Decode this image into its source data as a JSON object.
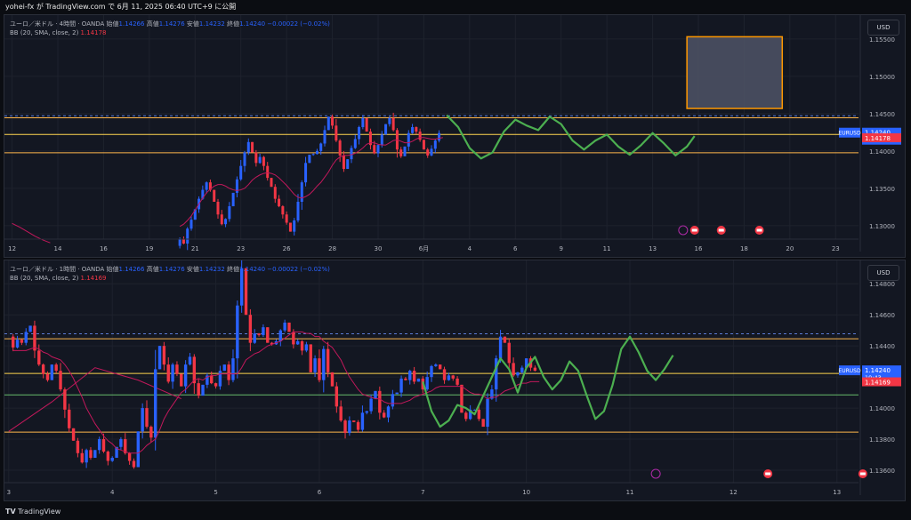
{
  "header": {
    "text": "yohei-fx が TradingView.com で 6月 11, 2025 06:40 UTC+9 に公開"
  },
  "footer": {
    "logo": "TV",
    "brand": "TradingView"
  },
  "panels": [
    {
      "legend": {
        "symbol": "ユーロ／米ドル · 4時間 · OANDA",
        "open_label": "始値",
        "open": "1.14266",
        "high_label": "高値",
        "high": "1.14276",
        "low_label": "安値",
        "low": "1.14232",
        "close_label": "終値",
        "close": "1.14240",
        "change": "−0.00022 (−0.02%)",
        "indicator": "BB (20, SMA, close, 2)",
        "indicator_value": "1.14178"
      },
      "currency_button": "USD",
      "price_badge": {
        "symbol": "EURUSD",
        "price": "1.14240",
        "countdown": "03:19:43"
      },
      "bb_badge": "1.14178"
    },
    {
      "legend": {
        "symbol": "ユーロ／米ドル · 1時間 · OANDA",
        "open_label": "始値",
        "open": "1.14266",
        "high_label": "高値",
        "high": "1.14276",
        "low_label": "安値",
        "low": "1.14232",
        "close_label": "終値",
        "close": "1.14240",
        "change": "−0.00022 (−0.02%)",
        "indicator": "BB (20, SMA, close, 2)",
        "indicator_value": "1.14169"
      },
      "currency_button": "USD",
      "price_badge": {
        "symbol": "EURUSD",
        "price": "1.14240",
        "countdown": "19:43"
      },
      "bb_badge": "1.14169"
    }
  ],
  "chart_data": [
    {
      "type": "candlestick",
      "title": "ユーロ／米ドル · 4時間 · OANDA",
      "y_ticks": [
        "1.15500",
        "1.15000",
        "1.14500",
        "1.14000",
        "1.13500",
        "1.13000"
      ],
      "y_tick_values": [
        1.155,
        1.15,
        1.145,
        1.14,
        1.135,
        1.13
      ],
      "ylim": [
        1.1282,
        1.1582
      ],
      "x_ticks": [
        "12",
        "14",
        "16",
        "19",
        "21",
        "23",
        "26",
        "28",
        "30",
        "6月",
        "4",
        "6",
        "9",
        "11",
        "13",
        "16",
        "18",
        "20",
        "23"
      ],
      "x_tick_slots": [
        0,
        12,
        24,
        36,
        48,
        60,
        72,
        84,
        96,
        108,
        120,
        132,
        144,
        156,
        168,
        180,
        192,
        204,
        216
      ],
      "x_slot_range": [
        -2,
        222
      ],
      "levels": [
        {
          "price": 1.14445,
          "color": "#ffb74d",
          "style": "solid"
        },
        {
          "price": 1.14222,
          "color": "#ffd54f",
          "style": "solid"
        },
        {
          "price": 1.13976,
          "color": "#ffb74d",
          "style": "solid"
        },
        {
          "price": 1.14472,
          "color": "#5b7bd5",
          "style": "dashed"
        }
      ],
      "zone_box": {
        "slot_start": 177,
        "slot_end": 202,
        "price_top": 1.1553,
        "price_bottom": 1.1457
      },
      "last_price": 1.1424,
      "bb_last": 1.14178,
      "ohlc_path": [
        1.1273,
        1.1282,
        1.1276,
        1.1296,
        1.1308,
        1.1322,
        1.1336,
        1.1348,
        1.1358,
        1.1348,
        1.1332,
        1.1315,
        1.1302,
        1.1309,
        1.1326,
        1.1344,
        1.1362,
        1.138,
        1.1398,
        1.1412,
        1.1398,
        1.1384,
        1.1392,
        1.138,
        1.1364,
        1.1352,
        1.1336,
        1.1326,
        1.1315,
        1.1304,
        1.1292,
        1.1307,
        1.1332,
        1.1358,
        1.1384,
        1.1395,
        1.1396,
        1.14,
        1.141,
        1.1428,
        1.1446,
        1.1434,
        1.1414,
        1.1394,
        1.1376,
        1.1389,
        1.1404,
        1.1416,
        1.1432,
        1.1444,
        1.1426,
        1.1408,
        1.1397,
        1.1408,
        1.1422,
        1.1436,
        1.1444,
        1.1428,
        1.1402,
        1.1393,
        1.1406,
        1.1424,
        1.1432,
        1.1426,
        1.1415,
        1.1402,
        1.1394,
        1.1403,
        1.1414,
        1.1424
      ],
      "path_slot_start": 43,
      "bb_path": [
        1.1299,
        1.1302,
        1.1307,
        1.1313,
        1.1321,
        1.1329,
        1.1337,
        1.1344,
        1.1349,
        1.1353,
        1.1355,
        1.1355,
        1.1353,
        1.135,
        1.1348,
        1.1347,
        1.1348,
        1.135,
        1.1355,
        1.1361,
        1.1365,
        1.1368,
        1.137,
        1.1371,
        1.137,
        1.1368,
        1.1364,
        1.1359,
        1.1354,
        1.1348,
        1.1342,
        1.1338,
        1.1337,
        1.1339,
        1.1342,
        1.1347,
        1.1353,
        1.1358,
        1.1365,
        1.1372,
        1.1381,
        1.1388,
        1.1392,
        1.1394,
        1.1394,
        1.1395,
        1.1397,
        1.14,
        1.1404,
        1.1409,
        1.1411,
        1.1411,
        1.1409,
        1.1408,
        1.1408,
        1.1411,
        1.1414,
        1.1415,
        1.1413,
        1.1411,
        1.1411,
        1.1413,
        1.1416,
        1.1418,
        1.1418,
        1.1417,
        1.1416,
        1.1416,
        1.1417,
        1.1418
      ],
      "band_path": [
        [
          0,
          1.1303
        ],
        [
          2,
          1.1298
        ],
        [
          4,
          1.1292
        ],
        [
          6,
          1.1286
        ],
        [
          8,
          1.1281
        ],
        [
          10,
          1.1277
        ]
      ],
      "green_path": [
        [
          114,
          1.1448
        ],
        [
          117,
          1.1432
        ],
        [
          120,
          1.1404
        ],
        [
          123,
          1.139
        ],
        [
          126,
          1.1398
        ],
        [
          129,
          1.1426
        ],
        [
          132,
          1.1442
        ],
        [
          135,
          1.1434
        ],
        [
          138,
          1.1428
        ],
        [
          141,
          1.1446
        ],
        [
          144,
          1.1436
        ],
        [
          147,
          1.1414
        ],
        [
          150,
          1.1402
        ],
        [
          153,
          1.1414
        ],
        [
          156,
          1.1422
        ],
        [
          159,
          1.1406
        ],
        [
          162,
          1.1395
        ],
        [
          165,
          1.1408
        ],
        [
          168,
          1.1424
        ],
        [
          171,
          1.141
        ],
        [
          174,
          1.1394
        ],
        [
          177,
          1.1406
        ],
        [
          179,
          1.142
        ]
      ],
      "events": [
        {
          "slot": 176,
          "kind": "flash"
        },
        {
          "slot": 179,
          "kind": "flag"
        },
        {
          "slot": 186,
          "kind": "flag"
        },
        {
          "slot": 196,
          "kind": "flag"
        }
      ]
    },
    {
      "type": "candlestick",
      "title": "ユーロ／米ドル · 1時間 · OANDA",
      "y_ticks": [
        "1.14800",
        "1.14600",
        "1.14400",
        "1.14200",
        "1.14000",
        "1.13800",
        "1.13600"
      ],
      "y_tick_values": [
        1.148,
        1.146,
        1.144,
        1.142,
        1.14,
        1.138,
        1.136
      ],
      "ylim": [
        1.1352,
        1.1495
      ],
      "x_ticks": [
        "3",
        "4",
        "5",
        "6",
        "7",
        "10",
        "11",
        "12",
        "13"
      ],
      "x_tick_slots": [
        0,
        24,
        48,
        72,
        96,
        120,
        144,
        168,
        192
      ],
      "x_slot_range": [
        -1,
        197
      ],
      "levels": [
        {
          "price": 1.14446,
          "color": "#ffb74d",
          "style": "solid"
        },
        {
          "price": 1.14223,
          "color": "#ffd54f",
          "style": "solid"
        },
        {
          "price": 1.14085,
          "color": "#66bb6a",
          "style": "solid"
        },
        {
          "price": 1.13845,
          "color": "#ffb74d",
          "style": "solid"
        },
        {
          "price": 1.14478,
          "color": "#5b7bd5",
          "style": "dashed"
        }
      ],
      "last_price": 1.1424,
      "bb_last": 1.14169,
      "ohlc_path": [
        1.1446,
        1.1439,
        1.1444,
        1.1442,
        1.1449,
        1.1453,
        1.1437,
        1.1428,
        1.1422,
        1.1418,
        1.1428,
        1.1424,
        1.1412,
        1.1399,
        1.1387,
        1.1379,
        1.1371,
        1.1365,
        1.1373,
        1.1368,
        1.1373,
        1.138,
        1.1372,
        1.1366,
        1.1368,
        1.1375,
        1.138,
        1.1371,
        1.1366,
        1.1362,
        1.1385,
        1.14,
        1.1388,
        1.1381,
        1.1425,
        1.144,
        1.1428,
        1.1417,
        1.1428,
        1.1422,
        1.1414,
        1.1428,
        1.1433,
        1.1416,
        1.1408,
        1.1415,
        1.1421,
        1.1416,
        1.1414,
        1.1424,
        1.1428,
        1.1418,
        1.1432,
        1.1466,
        1.149,
        1.146,
        1.1442,
        1.1448,
        1.1447,
        1.1452,
        1.1442,
        1.1441,
        1.1443,
        1.145,
        1.1455,
        1.1449,
        1.1441,
        1.1443,
        1.1437,
        1.1441,
        1.1423,
        1.1432,
        1.1418,
        1.1438,
        1.1423,
        1.1414,
        1.1401,
        1.1392,
        1.1384,
        1.1392,
        1.1391,
        1.1386,
        1.1397,
        1.1398,
        1.1406,
        1.1411,
        1.1397,
        1.1394,
        1.1401,
        1.1409,
        1.141,
        1.1419,
        1.1418,
        1.1424,
        1.1417,
        1.1419,
        1.1412,
        1.142,
        1.1427,
        1.1428,
        1.1425,
        1.1418,
        1.1421,
        1.1419,
        1.1415,
        1.1397,
        1.1393,
        1.1399,
        1.1399,
        1.1393,
        1.1388,
        1.1406,
        1.1412,
        1.1432,
        1.1446,
        1.1442,
        1.1429,
        1.1421,
        1.1423,
        1.1426,
        1.1432,
        1.1426,
        1.1424
      ],
      "path_slot_start": 0,
      "bb_path": [
        1.1437,
        1.1437,
        1.1437,
        1.1437,
        1.1438,
        1.1439,
        1.1438,
        1.1436,
        1.1435,
        1.1433,
        1.1432,
        1.1431,
        1.1428,
        1.1424,
        1.1419,
        1.1413,
        1.1407,
        1.14,
        1.1395,
        1.139,
        1.1386,
        1.1382,
        1.1379,
        1.1377,
        1.1374,
        1.1373,
        1.1372,
        1.1371,
        1.1371,
        1.1371,
        1.1373,
        1.1376,
        1.1378,
        1.138,
        1.1386,
        1.1393,
        1.1398,
        1.1402,
        1.1406,
        1.141,
        1.1412,
        1.1415,
        1.1418,
        1.1419,
        1.1418,
        1.142,
        1.1421,
        1.1421,
        1.1422,
        1.1422,
        1.1422,
        1.1422,
        1.1422,
        1.1426,
        1.1431,
        1.1433,
        1.1435,
        1.1436,
        1.1438,
        1.144,
        1.1441,
        1.1442,
        1.1443,
        1.1445,
        1.1447,
        1.1449,
        1.1449,
        1.1449,
        1.1448,
        1.1448,
        1.1446,
        1.1446,
        1.1443,
        1.1441,
        1.1439,
        1.1435,
        1.1431,
        1.1425,
        1.142,
        1.1416,
        1.1412,
        1.1409,
        1.1408,
        1.1407,
        1.1406,
        1.1406,
        1.1404,
        1.1403,
        1.1403,
        1.1403,
        1.1403,
        1.1404,
        1.1405,
        1.1407,
        1.1408,
        1.1409,
        1.141,
        1.1411,
        1.1413,
        1.1414,
        1.1414,
        1.1414,
        1.1414,
        1.1414,
        1.1414,
        1.1412,
        1.141,
        1.1409,
        1.1409,
        1.1408,
        1.1406,
        1.1407,
        1.1407,
        1.1409,
        1.1411,
        1.1412,
        1.1413,
        1.1415,
        1.1416,
        1.1416,
        1.1417,
        1.1417,
        1.1417
      ],
      "band_path": [
        [
          0,
          1.1385
        ],
        [
          10,
          1.1404
        ],
        [
          20,
          1.1426
        ],
        [
          30,
          1.1418
        ],
        [
          40,
          1.1406
        ]
      ],
      "green_path": [
        [
          96,
          1.1417
        ],
        [
          98,
          1.1398
        ],
        [
          100,
          1.1388
        ],
        [
          102,
          1.1392
        ],
        [
          104,
          1.1402
        ],
        [
          106,
          1.14
        ],
        [
          108,
          1.1396
        ],
        [
          110,
          1.1408
        ],
        [
          112,
          1.142
        ],
        [
          114,
          1.1432
        ],
        [
          116,
          1.1425
        ],
        [
          118,
          1.141
        ],
        [
          120,
          1.1426
        ],
        [
          122,
          1.1433
        ],
        [
          124,
          1.142
        ],
        [
          126,
          1.1412
        ],
        [
          128,
          1.1418
        ],
        [
          130,
          1.143
        ],
        [
          132,
          1.1424
        ],
        [
          134,
          1.1408
        ],
        [
          136,
          1.1393
        ],
        [
          138,
          1.1398
        ],
        [
          140,
          1.1415
        ],
        [
          142,
          1.1438
        ],
        [
          144,
          1.1446
        ],
        [
          146,
          1.1436
        ],
        [
          148,
          1.1424
        ],
        [
          150,
          1.1418
        ],
        [
          152,
          1.1425
        ],
        [
          154,
          1.1434
        ]
      ],
      "events": [
        {
          "slot": 150,
          "kind": "flash"
        },
        {
          "slot": 176,
          "kind": "flag"
        },
        {
          "slot": 198,
          "kind": "flag"
        }
      ]
    }
  ]
}
